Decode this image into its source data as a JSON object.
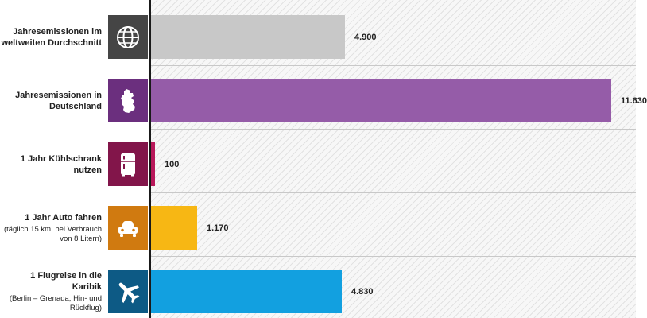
{
  "chart_data": {
    "type": "bar",
    "orientation": "horizontal",
    "categories": [
      {
        "label": "Jahresemissionen im weltweiten Durchschnitt",
        "sub": "",
        "icon": "globe-icon",
        "color": "#c8c8c8",
        "icon_bg": "#454545",
        "value": 4900,
        "value_label": "4.900"
      },
      {
        "label": "Jahresemissionen in Deutschland",
        "sub": "",
        "icon": "germany-map-icon",
        "color": "#955ca8",
        "icon_bg": "#6b2f7e",
        "value": 11630,
        "value_label": "11.630"
      },
      {
        "label": "1 Jahr Kühlschrank nutzen",
        "sub": "",
        "icon": "fridge-icon",
        "color": "#b8185a",
        "icon_bg": "#82154a",
        "value": 100,
        "value_label": "100"
      },
      {
        "label": "1 Jahr Auto fahren",
        "sub": "(täglich 15 km, bei Verbrauch von 8 Litern)",
        "icon": "car-icon",
        "color": "#f7b714",
        "icon_bg": "#d07a10",
        "value": 1170,
        "value_label": "1.170"
      },
      {
        "label": "1 Flugreise in die Karibik",
        "sub": "(Berlin – Grenada, Hin- und Rückflug)",
        "icon": "airplane-icon",
        "color": "#12a0e0",
        "icon_bg": "#0d5a85",
        "value": 4830,
        "value_label": "4.830"
      }
    ],
    "xlim": [
      0,
      12050
    ],
    "grid": false,
    "legend": "none"
  }
}
